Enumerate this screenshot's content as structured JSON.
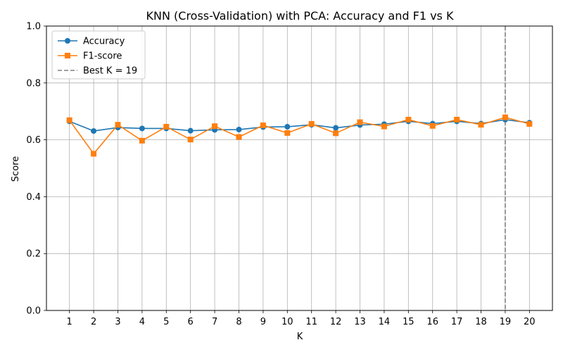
{
  "chart_data": {
    "type": "line",
    "title": "KNN (Cross-Validation) with PCA: Accuracy and F1 vs K",
    "xlabel": "K",
    "ylabel": "Score",
    "x": [
      1,
      2,
      3,
      4,
      5,
      6,
      7,
      8,
      9,
      10,
      11,
      12,
      13,
      14,
      15,
      16,
      17,
      18,
      19,
      20
    ],
    "ylim": [
      0,
      1
    ],
    "yticks": [
      "0.0",
      "0.2",
      "0.4",
      "0.6",
      "0.8",
      "1.0"
    ],
    "grid": true,
    "legend_position": "top-left",
    "series": [
      {
        "name": "Accuracy",
        "color": "#1f77b4",
        "marker": "circle",
        "values": [
          0.665,
          0.631,
          0.643,
          0.64,
          0.64,
          0.632,
          0.635,
          0.636,
          0.645,
          0.646,
          0.653,
          0.642,
          0.652,
          0.655,
          0.665,
          0.657,
          0.665,
          0.657,
          0.671,
          0.66
        ]
      },
      {
        "name": "F1-score",
        "color": "#ff7f0e",
        "marker": "square",
        "values": [
          0.669,
          0.551,
          0.653,
          0.597,
          0.646,
          0.601,
          0.648,
          0.61,
          0.651,
          0.624,
          0.656,
          0.623,
          0.662,
          0.647,
          0.671,
          0.649,
          0.671,
          0.653,
          0.679,
          0.656
        ]
      }
    ],
    "reference_line": {
      "label": "Best K = 19",
      "x": 19,
      "color": "#808080",
      "style": "dashed"
    }
  }
}
